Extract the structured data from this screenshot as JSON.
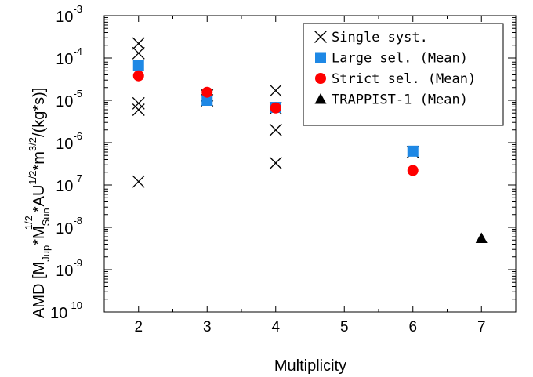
{
  "chart_data": {
    "type": "scatter",
    "title": "",
    "xlabel": "Multiplicity",
    "ylabel_parts": {
      "prefix": "AMD [M",
      "jup_sub": "Jup",
      "star": "*M",
      "sun_sub": "Sun",
      "sun_sup": "1/2",
      "au": "*AU",
      "au_sup": "1/2",
      "m": "*m",
      "m_sup": "3/2",
      "suffix": "/(kg*s)]"
    },
    "x_range": [
      1.5,
      7.5
    ],
    "y_range": [
      1e-10,
      0.001
    ],
    "y_scale": "log",
    "x_ticks": [
      "2",
      "3",
      "4",
      "5",
      "6",
      "7"
    ],
    "y_ticks": [
      {
        "base": "10",
        "exp": "-10"
      },
      {
        "base": "10",
        "exp": "-9"
      },
      {
        "base": "10",
        "exp": "-8"
      },
      {
        "base": "10",
        "exp": "-7"
      },
      {
        "base": "10",
        "exp": "-6"
      },
      {
        "base": "10",
        "exp": "-5"
      },
      {
        "base": "10",
        "exp": "-4"
      },
      {
        "base": "10",
        "exp": "-3"
      }
    ],
    "legend_position": "top-right",
    "series": [
      {
        "name": "Single syst.",
        "marker": "x",
        "color": "#000000",
        "points": [
          [
            2,
            0.00022
          ],
          [
            2,
            0.00013
          ],
          [
            2,
            8.5e-06
          ],
          [
            2,
            6e-06
          ],
          [
            2,
            1.2e-07
          ],
          [
            3,
            1.3e-05
          ],
          [
            3,
            1e-05
          ],
          [
            4,
            1.7e-05
          ],
          [
            4,
            6.5e-06
          ],
          [
            4,
            2e-06
          ],
          [
            4,
            3.3e-07
          ],
          [
            6,
            6e-07
          ]
        ]
      },
      {
        "name": "Large sel. (Mean)",
        "marker": "square",
        "color": "#1e88e5",
        "points": [
          [
            2,
            6.8e-05
          ],
          [
            3,
            1e-05
          ],
          [
            4,
            6.8e-06
          ],
          [
            6,
            6.3e-07
          ]
        ]
      },
      {
        "name": "Strict sel. (Mean)",
        "marker": "circle",
        "color": "#ff0000",
        "points": [
          [
            2,
            3.8e-05
          ],
          [
            3,
            1.55e-05
          ],
          [
            4,
            6.6e-06
          ],
          [
            6,
            2.2e-07
          ]
        ]
      },
      {
        "name": "TRAPPIST-1 (Mean)",
        "marker": "triangle",
        "color": "#000000",
        "points": [
          [
            7,
            5.5e-09
          ]
        ]
      }
    ]
  }
}
